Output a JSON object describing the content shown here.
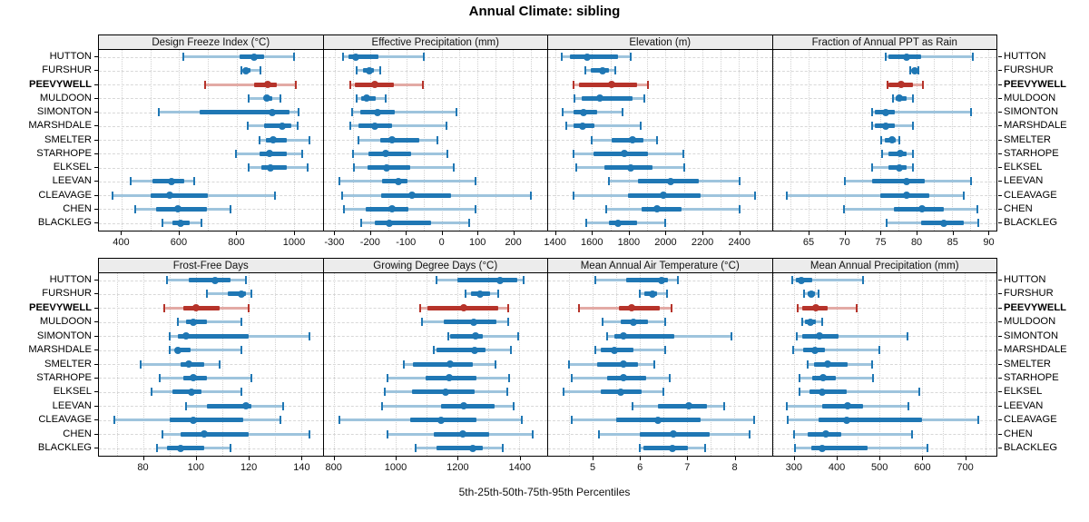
{
  "title": "Annual Climate: sibling",
  "caption": "5th-25th-50th-75th-95th Percentiles",
  "highlight_station": "PEEVYWELL",
  "colors": {
    "series": "#1f77b4",
    "series_light": "#9ec4dd",
    "highlight": "#b6332a",
    "highlight_light": "#e3aaa5",
    "strip_bg": "#ececec",
    "panel_border": "#000000",
    "grid": "#d5d5d5"
  },
  "stations": [
    "HUTTON",
    "FURSHUR",
    "PEEVYWELL",
    "MULDOON",
    "SIMONTON",
    "MARSHDALE",
    "SMELTER",
    "STARHOPE",
    "ELKSEL",
    "LEEVAN",
    "CLEAVAGE",
    "CHEN",
    "BLACKLEG"
  ],
  "chart_data": {
    "type": "scatter",
    "subtype": "dotplot of 5th-25th-50th-75th-95th percentile intervals (median dot, 25-75 thick bar, 5-95 whisker with end caps)",
    "legend_position": "none",
    "grid": "dotted vertical at half-tick steps, dashed horizontal per station row",
    "panels": [
      {
        "label": "Design Freeze Index (°C)",
        "row": 0,
        "xlim": [
          320,
          1100
        ],
        "ticks": [
          400,
          600,
          800,
          1000
        ],
        "grid_step": 100,
        "values": {
          "HUTTON": [
            615,
            812,
            860,
            897,
            1000
          ],
          "FURSHUR": [
            818,
            826,
            833,
            850,
            882
          ],
          "PEEVYWELL": [
            690,
            860,
            910,
            940,
            1008
          ],
          "MULDOON": [
            842,
            896,
            906,
            923,
            952
          ],
          "SIMONTON": [
            530,
            670,
            924,
            985,
            1015
          ],
          "MARSHDALE": [
            838,
            896,
            960,
            991,
            1013
          ],
          "SMELTER": [
            881,
            902,
            926,
            976,
            1053
          ],
          "STARHOPE": [
            798,
            881,
            916,
            975,
            1029
          ],
          "ELKSEL": [
            843,
            886,
            918,
            976,
            1048
          ],
          "LEEVAN": [
            432,
            506,
            572,
            617,
            651
          ],
          "CLEAVAGE": [
            368,
            500,
            567,
            700,
            933
          ],
          "CHEN": [
            445,
            520,
            595,
            695,
            780
          ],
          "BLACKLEG": [
            540,
            575,
            604,
            638,
            678
          ]
        }
      },
      {
        "label": "Effective Precipitation (mm)",
        "row": 0,
        "xlim": [
          -332,
          296
        ],
        "ticks": [
          -300,
          -200,
          -100,
          0,
          100,
          200
        ],
        "grid_step": 50,
        "values": {
          "HUTTON": [
            -277,
            -262,
            -241,
            -177,
            -50
          ],
          "FURSHUR": [
            -240,
            -222,
            -204,
            -190,
            -172
          ],
          "PEEVYWELL": [
            -256,
            -243,
            -189,
            -135,
            -52
          ],
          "MULDOON": [
            -238,
            -227,
            -210,
            -185,
            -158
          ],
          "SIMONTON": [
            -252,
            -230,
            -181,
            -133,
            40
          ],
          "MARSHDALE": [
            -258,
            -235,
            -187,
            -140,
            12
          ],
          "SMELTER": [
            -233,
            -173,
            -140,
            -62,
            -11
          ],
          "STARHOPE": [
            -249,
            -206,
            -158,
            -86,
            17
          ],
          "ELKSEL": [
            -246,
            -208,
            -155,
            -88,
            33
          ],
          "LEEVAN": [
            -288,
            -167,
            -121,
            -96,
            96
          ],
          "CLEAVAGE": [
            -279,
            -169,
            -84,
            27,
            251
          ],
          "CHEN": [
            -274,
            -214,
            -140,
            -94,
            96
          ],
          "BLACKLEG": [
            -227,
            -188,
            -148,
            -30,
            78
          ]
        }
      },
      {
        "label": "Elevation (m)",
        "row": 0,
        "xlim": [
          1360,
          2580
        ],
        "ticks": [
          1400,
          1600,
          1800,
          2000,
          2200,
          2400
        ],
        "grid_step": 100,
        "values": {
          "HUTTON": [
            1436,
            1481,
            1575,
            1740,
            1810
          ],
          "FURSHUR": [
            1565,
            1594,
            1659,
            1692,
            1727
          ],
          "PEEVYWELL": [
            1497,
            1530,
            1708,
            1846,
            1902
          ],
          "MULDOON": [
            1505,
            1541,
            1643,
            1821,
            1883
          ],
          "SIMONTON": [
            1440,
            1497,
            1551,
            1627,
            1768
          ],
          "MARSHDALE": [
            1460,
            1497,
            1546,
            1611,
            1865
          ],
          "SMELTER": [
            1598,
            1708,
            1818,
            1878,
            1956
          ],
          "STARHOPE": [
            1497,
            1606,
            1777,
            1902,
            2097
          ],
          "ELKSEL": [
            1513,
            1667,
            1810,
            1927,
            2101
          ],
          "LEEVAN": [
            1690,
            1850,
            2030,
            2180,
            2405
          ],
          "CLEAVAGE": [
            1497,
            1797,
            1991,
            2194,
            2486
          ],
          "CHEN": [
            1679,
            1870,
            1956,
            2088,
            2404
          ],
          "BLACKLEG": [
            1567,
            1692,
            1740,
            1846,
            2000
          ]
        }
      },
      {
        "label": "Fraction of Annual PPT as Rain",
        "row": 0,
        "xlim": [
          60,
          91.2
        ],
        "ticks": [
          65,
          70,
          75,
          80,
          85,
          90
        ],
        "grid_step": 2.5,
        "values": {
          "HUTTON": [
            75.8,
            76.2,
            78.7,
            80.7,
            87.9
          ],
          "FURSHUR": [
            79.2,
            79.4,
            79.8,
            80.1,
            80.3
          ],
          "PEEVYWELL": [
            76.0,
            76.2,
            77.9,
            79.5,
            81.0
          ],
          "MULDOON": [
            76.8,
            77.2,
            77.7,
            78.7,
            79.6
          ],
          "SIMONTON": [
            73.8,
            74.3,
            75.7,
            77.0,
            87.7
          ],
          "MARSHDALE": [
            73.9,
            74.3,
            75.7,
            77.0,
            79.6
          ],
          "SMELTER": [
            75.1,
            75.6,
            76.6,
            77.2,
            77.7
          ],
          "STARHOPE": [
            75.2,
            76.1,
            77.8,
            78.7,
            79.6
          ],
          "ELKSEL": [
            73.8,
            76.1,
            77.7,
            78.7,
            79.6
          ],
          "LEEVAN": [
            70.0,
            73.8,
            78.7,
            81.2,
            87.7
          ],
          "CLEAVAGE": [
            62.0,
            75.0,
            78.7,
            81.8,
            86.7
          ],
          "CHEN": [
            69.9,
            76.9,
            80.8,
            83.8,
            88.5
          ],
          "BLACKLEG": [
            75.9,
            80.7,
            83.8,
            86.7,
            88.7
          ]
        }
      },
      {
        "label": "Frost-Free Days",
        "row": 1,
        "xlim": [
          63,
          148
        ],
        "ticks": [
          80,
          100,
          120,
          140
        ],
        "grid_step": 10,
        "values": {
          "HUTTON": [
            89,
            97,
            107,
            113,
            119
          ],
          "FURSHUR": [
            104,
            112,
            117,
            119,
            121
          ],
          "PEEVYWELL": [
            88,
            95,
            100,
            109,
            120
          ],
          "MULDOON": [
            93,
            96,
            99,
            104,
            117
          ],
          "SIMONTON": [
            90,
            93,
            96,
            120,
            143
          ],
          "MARSHDALE": [
            90,
            92,
            93,
            98,
            117
          ],
          "SMELTER": [
            79,
            94,
            97,
            103,
            109
          ],
          "STARHOPE": [
            86,
            95,
            99,
            104,
            121
          ],
          "ELKSEL": [
            83,
            91,
            98,
            102,
            117
          ],
          "LEEVAN": [
            96,
            104,
            119,
            121,
            133
          ],
          "CLEAVAGE": [
            69,
            90,
            99,
            118,
            132
          ],
          "CHEN": [
            87,
            94,
            103,
            120,
            143
          ],
          "BLACKLEG": [
            85,
            89,
            94,
            103,
            113
          ]
        }
      },
      {
        "label": "Growing Degree Days (°C)",
        "row": 1,
        "xlim": [
          765,
          1490
        ],
        "ticks": [
          800,
          1000,
          1200,
          1400
        ],
        "grid_step": 100,
        "values": {
          "HUTTON": [
            1132,
            1200,
            1337,
            1392,
            1414
          ],
          "FURSHUR": [
            1226,
            1243,
            1272,
            1306,
            1330
          ],
          "PEEVYWELL": [
            1079,
            1103,
            1219,
            1330,
            1363
          ],
          "MULDOON": [
            1084,
            1156,
            1251,
            1325,
            1363
          ],
          "SIMONTON": [
            1169,
            1176,
            1257,
            1281,
            1397
          ],
          "MARSHDALE": [
            1121,
            1132,
            1255,
            1291,
            1373
          ],
          "SMELTER": [
            1024,
            1055,
            1176,
            1250,
            1323
          ],
          "STARHOPE": [
            973,
            1096,
            1173,
            1262,
            1365
          ],
          "ELKSEL": [
            964,
            1053,
            1161,
            1255,
            1360
          ],
          "LEEVAN": [
            954,
            1147,
            1219,
            1320,
            1381
          ],
          "CLEAVAGE": [
            816,
            1046,
            1145,
            1262,
            1407
          ],
          "CHEN": [
            973,
            1123,
            1217,
            1301,
            1442
          ],
          "BLACKLEG": [
            1063,
            1130,
            1250,
            1281,
            1347
          ]
        }
      },
      {
        "label": "Mean Annual Air Temperature (°C)",
        "row": 1,
        "xlim": [
          4.05,
          8.8
        ],
        "ticks": [
          5,
          6,
          7,
          8
        ],
        "grid_step": 0.5,
        "values": {
          "HUTTON": [
            5.05,
            5.7,
            6.45,
            6.6,
            6.8
          ],
          "FURSHUR": [
            6.0,
            6.1,
            6.27,
            6.37,
            6.58
          ],
          "PEEVYWELL": [
            4.7,
            5.55,
            5.83,
            6.42,
            6.67
          ],
          "MULDOON": [
            5.2,
            5.6,
            5.86,
            6.17,
            6.54
          ],
          "SIMONTON": [
            5.3,
            5.45,
            5.64,
            6.73,
            7.94
          ],
          "MARSHDALE": [
            5.06,
            5.17,
            5.46,
            5.86,
            6.54
          ],
          "SMELTER": [
            4.5,
            5.1,
            5.65,
            5.95,
            6.31
          ],
          "STARHOPE": [
            4.55,
            5.3,
            5.64,
            6.14,
            6.64
          ],
          "ELKSEL": [
            4.38,
            5.17,
            5.6,
            6.04,
            6.5
          ],
          "LEEVAN": [
            5.84,
            6.38,
            7.04,
            7.42,
            7.78
          ],
          "CLEAVAGE": [
            4.56,
            5.5,
            6.38,
            7.29,
            8.42
          ],
          "CHEN": [
            5.13,
            6.0,
            6.7,
            7.48,
            8.33
          ],
          "BLACKLEG": [
            6.0,
            6.08,
            6.69,
            7.01,
            7.39
          ]
        }
      },
      {
        "label": "Mean Annual Precipitation (mm)",
        "row": 1,
        "xlim": [
          250,
          775
        ],
        "ticks": [
          300,
          400,
          500,
          600,
          700
        ],
        "grid_step": 50,
        "values": {
          "HUTTON": [
            296,
            305,
            317,
            343,
            461
          ],
          "FURSHUR": [
            324,
            331,
            340,
            349,
            357
          ],
          "PEEVYWELL": [
            308,
            319,
            351,
            378,
            447
          ],
          "MULDOON": [
            319,
            326,
            338,
            351,
            367
          ],
          "SIMONTON": [
            307,
            319,
            359,
            404,
            566
          ],
          "MARSHDALE": [
            298,
            321,
            350,
            372,
            500
          ],
          "SMELTER": [
            331,
            346,
            379,
            425,
            484
          ],
          "STARHOPE": [
            312,
            342,
            369,
            397,
            485
          ],
          "ELKSEL": [
            312,
            336,
            367,
            423,
            594
          ],
          "LEEVAN": [
            284,
            367,
            425,
            461,
            568
          ],
          "CLEAVAGE": [
            286,
            358,
            423,
            601,
            733
          ],
          "CHEN": [
            301,
            331,
            374,
            410,
            577
          ],
          "BLACKLEG": [
            303,
            340,
            367,
            473,
            613
          ]
        }
      }
    ]
  }
}
